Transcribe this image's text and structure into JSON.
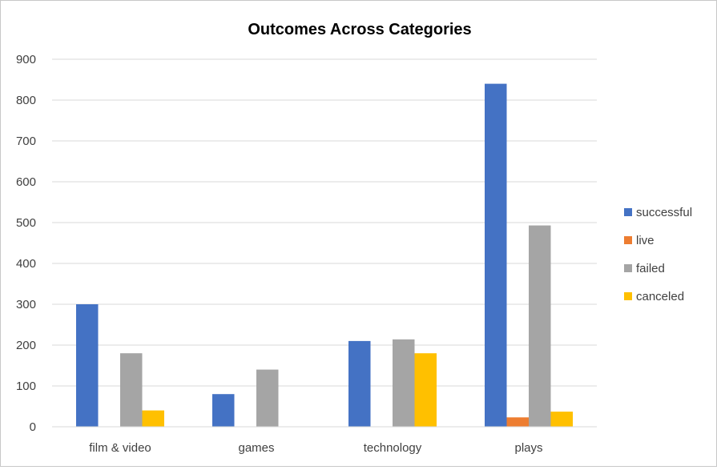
{
  "chart_data": {
    "type": "bar",
    "title": "Outcomes Across Categories",
    "xlabel": "",
    "ylabel": "",
    "categories": [
      "film & video",
      "games",
      "technology",
      "plays"
    ],
    "series": [
      {
        "name": "successful",
        "color": "#4472C4",
        "values": [
          300,
          80,
          210,
          840
        ]
      },
      {
        "name": "live",
        "color": "#ED7D31",
        "values": [
          0,
          0,
          0,
          23
        ]
      },
      {
        "name": "failed",
        "color": "#A5A5A5",
        "values": [
          180,
          140,
          214,
          493
        ]
      },
      {
        "name": "canceled",
        "color": "#FFC000",
        "values": [
          40,
          0,
          180,
          37
        ]
      }
    ],
    "ylim": [
      0,
      900
    ],
    "yticks": [
      "0",
      "100",
      "200",
      "300",
      "400",
      "500",
      "600",
      "700",
      "800",
      "900"
    ],
    "grid": true,
    "legend_position": "right"
  }
}
